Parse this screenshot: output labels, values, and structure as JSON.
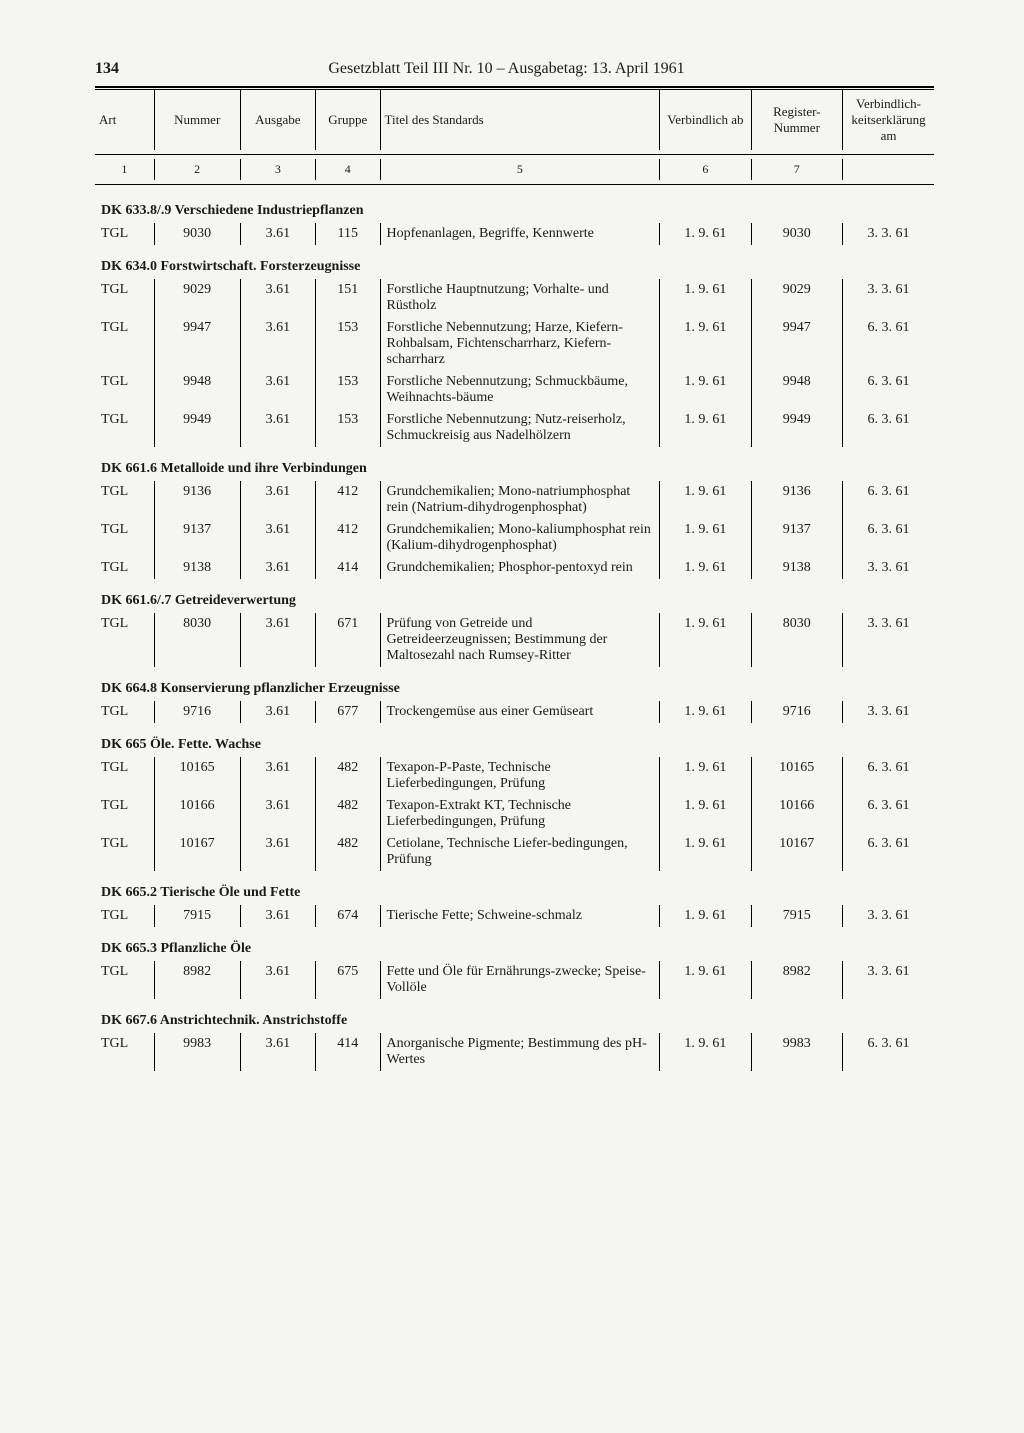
{
  "pageNumber": "134",
  "pageTitle": "Gesetzblatt Teil III Nr. 10 – Ausgabetag: 13. April 1961",
  "columns": {
    "art": "Art",
    "nummer": "Nummer",
    "ausgabe": "Ausgabe",
    "gruppe": "Gruppe",
    "titel": "Titel des Standards",
    "verbindlich": "Verbindlich ab",
    "register": "Register-Nummer",
    "am": "Verbindlich-keitserklärung am"
  },
  "colNums": {
    "c1": "1",
    "c2": "2",
    "c3": "3",
    "c4": "4",
    "c5": "5",
    "c6": "6",
    "c7": "7",
    "c8": ""
  },
  "sections": [
    {
      "heading": "DK 633.8/.9 Verschiedene Industriepflanzen",
      "rows": [
        {
          "art": "TGL",
          "num": "9030",
          "aus": "3.61",
          "grp": "115",
          "tit": "Hopfenanlagen, Begriffe, Kennwerte",
          "verb": "1. 9. 61",
          "reg": "9030",
          "am": "3. 3. 61"
        }
      ]
    },
    {
      "heading": "DK 634.0 Forstwirtschaft. Forsterzeugnisse",
      "rows": [
        {
          "art": "TGL",
          "num": "9029",
          "aus": "3.61",
          "grp": "151",
          "tit": "Forstliche Hauptnutzung; Vorhalte- und Rüstholz",
          "verb": "1. 9. 61",
          "reg": "9029",
          "am": "3. 3. 61"
        },
        {
          "art": "TGL",
          "num": "9947",
          "aus": "3.61",
          "grp": "153",
          "tit": "Forstliche Nebennutzung; Harze, Kiefern-Rohbalsam, Fichtenscharrharz, Kiefern-scharrharz",
          "verb": "1. 9. 61",
          "reg": "9947",
          "am": "6. 3. 61"
        },
        {
          "art": "TGL",
          "num": "9948",
          "aus": "3.61",
          "grp": "153",
          "tit": "Forstliche Nebennutzung; Schmuckbäume, Weihnachts-bäume",
          "verb": "1. 9. 61",
          "reg": "9948",
          "am": "6. 3. 61"
        },
        {
          "art": "TGL",
          "num": "9949",
          "aus": "3.61",
          "grp": "153",
          "tit": "Forstliche Nebennutzung; Nutz-reiserholz, Schmuckreisig aus Nadelhölzern",
          "verb": "1. 9. 61",
          "reg": "9949",
          "am": "6. 3. 61"
        }
      ]
    },
    {
      "heading": "DK 661.6 Metalloide und ihre Verbindungen",
      "rows": [
        {
          "art": "TGL",
          "num": "9136",
          "aus": "3.61",
          "grp": "412",
          "tit": "Grundchemikalien; Mono-natriumphosphat rein (Natrium-dihydrogenphosphat)",
          "verb": "1. 9. 61",
          "reg": "9136",
          "am": "6. 3. 61"
        },
        {
          "art": "TGL",
          "num": "9137",
          "aus": "3.61",
          "grp": "412",
          "tit": "Grundchemikalien; Mono-kaliumphosphat rein (Kalium-dihydrogenphosphat)",
          "verb": "1. 9. 61",
          "reg": "9137",
          "am": "6. 3. 61"
        },
        {
          "art": "TGL",
          "num": "9138",
          "aus": "3.61",
          "grp": "414",
          "tit": "Grundchemikalien; Phosphor-pentoxyd rein",
          "verb": "1. 9. 61",
          "reg": "9138",
          "am": "3. 3. 61"
        }
      ]
    },
    {
      "heading": "DK 661.6/.7 Getreideverwertung",
      "rows": [
        {
          "art": "TGL",
          "num": "8030",
          "aus": "3.61",
          "grp": "671",
          "tit": "Prüfung von Getreide und Getreideerzeugnissen; Bestimmung der Maltosezahl nach Rumsey-Ritter",
          "verb": "1. 9. 61",
          "reg": "8030",
          "am": "3. 3. 61"
        }
      ]
    },
    {
      "heading": "DK 664.8 Konservierung pflanzlicher Erzeugnisse",
      "rows": [
        {
          "art": "TGL",
          "num": "9716",
          "aus": "3.61",
          "grp": "677",
          "tit": "Trockengemüse aus einer Gemüseart",
          "verb": "1. 9. 61",
          "reg": "9716",
          "am": "3. 3. 61"
        }
      ]
    },
    {
      "heading": "DK 665 Öle. Fette. Wachse",
      "rows": [
        {
          "art": "TGL",
          "num": "10165",
          "aus": "3.61",
          "grp": "482",
          "tit": "Texapon-P-Paste, Technische Lieferbedingungen, Prüfung",
          "verb": "1. 9. 61",
          "reg": "10165",
          "am": "6. 3. 61"
        },
        {
          "art": "TGL",
          "num": "10166",
          "aus": "3.61",
          "grp": "482",
          "tit": "Texapon-Extrakt KT, Technische Lieferbedingungen, Prüfung",
          "verb": "1. 9. 61",
          "reg": "10166",
          "am": "6. 3. 61"
        },
        {
          "art": "TGL",
          "num": "10167",
          "aus": "3.61",
          "grp": "482",
          "tit": "Cetiolane, Technische Liefer-bedingungen, Prüfung",
          "verb": "1. 9. 61",
          "reg": "10167",
          "am": "6. 3. 61"
        }
      ]
    },
    {
      "heading": "DK 665.2 Tierische Öle und Fette",
      "rows": [
        {
          "art": "TGL",
          "num": "7915",
          "aus": "3.61",
          "grp": "674",
          "tit": "Tierische Fette; Schweine-schmalz",
          "verb": "1. 9. 61",
          "reg": "7915",
          "am": "3. 3. 61"
        }
      ]
    },
    {
      "heading": "DK 665.3 Pflanzliche Öle",
      "rows": [
        {
          "art": "TGL",
          "num": "8982",
          "aus": "3.61",
          "grp": "675",
          "tit": "Fette und Öle für Ernährungs-zwecke; Speise-Vollöle",
          "verb": "1. 9. 61",
          "reg": "8982",
          "am": "3. 3. 61"
        }
      ]
    },
    {
      "heading": "DK 667.6 Anstrichtechnik. Anstrichstoffe",
      "rows": [
        {
          "art": "TGL",
          "num": "9983",
          "aus": "3.61",
          "grp": "414",
          "tit": "Anorganische Pigmente; Bestimmung des pH-Wertes",
          "verb": "1. 9. 61",
          "reg": "9983",
          "am": "6. 3. 61"
        }
      ]
    }
  ]
}
